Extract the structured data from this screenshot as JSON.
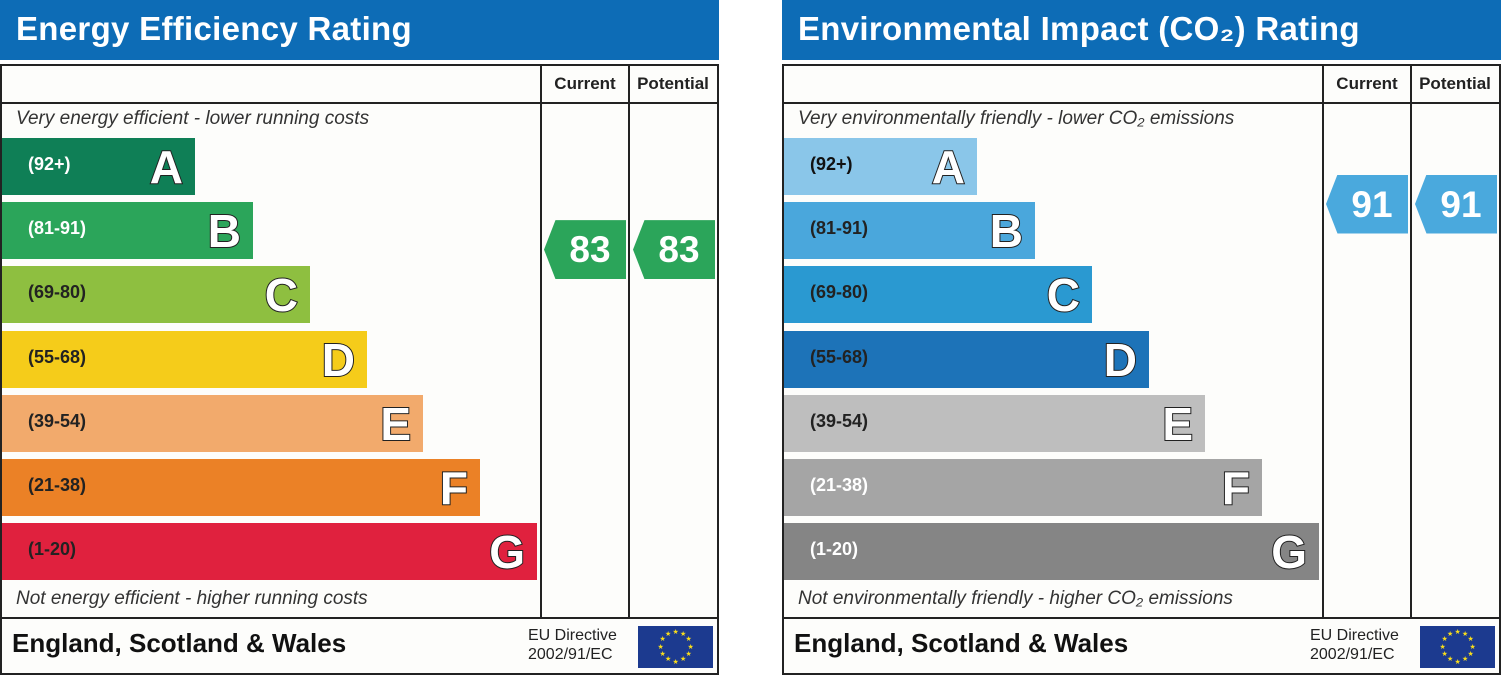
{
  "chart_data": [
    {
      "type": "bar",
      "title": "Energy Efficiency Rating",
      "columns": [
        "Current",
        "Potential"
      ],
      "top_text": "Very energy efficient - lower running costs",
      "bottom_text": "Not energy efficient - higher running costs",
      "bands": [
        {
          "letter": "A",
          "range": "(92+)",
          "min": 92,
          "max": 100,
          "color": "#0f7f56",
          "text_color": "#ffffff"
        },
        {
          "letter": "B",
          "range": "(81-91)",
          "min": 81,
          "max": 91,
          "color": "#2ba55a",
          "text_color": "#ffffff"
        },
        {
          "letter": "C",
          "range": "(69-80)",
          "min": 69,
          "max": 80,
          "color": "#8ebf40",
          "text_color": "#222222"
        },
        {
          "letter": "D",
          "range": "(55-68)",
          "min": 55,
          "max": 68,
          "color": "#f5cc1a",
          "text_color": "#222222"
        },
        {
          "letter": "E",
          "range": "(39-54)",
          "min": 39,
          "max": 54,
          "color": "#f2aa6c",
          "text_color": "#222222"
        },
        {
          "letter": "F",
          "range": "(21-38)",
          "min": 21,
          "max": 38,
          "color": "#eb8126",
          "text_color": "#222222"
        },
        {
          "letter": "G",
          "range": "(1-20)",
          "min": 1,
          "max": 20,
          "color": "#e0213e",
          "text_color": "#222222"
        }
      ],
      "current": 83,
      "potential": 83,
      "arrow_color": "#2ba55a",
      "footer": "England, Scotland & Wales",
      "eu_line1": "EU Directive",
      "eu_line2": "2002/91/EC"
    },
    {
      "type": "bar",
      "title": "Environmental Impact (CO₂) Rating",
      "columns": [
        "Current",
        "Potential"
      ],
      "top_text": "Very environmentally friendly - lower CO₂ emissions",
      "bottom_text": "Not environmentally friendly - higher CO₂ emissions",
      "bands": [
        {
          "letter": "A",
          "range": "(92+)",
          "min": 92,
          "max": 100,
          "color": "#8ac6e9",
          "text_color": "#111111"
        },
        {
          "letter": "B",
          "range": "(81-91)",
          "min": 81,
          "max": 91,
          "color": "#4aa7dc",
          "text_color": "#222222"
        },
        {
          "letter": "C",
          "range": "(69-80)",
          "min": 69,
          "max": 80,
          "color": "#2a99d1",
          "text_color": "#222222"
        },
        {
          "letter": "D",
          "range": "(55-68)",
          "min": 55,
          "max": 68,
          "color": "#1d73b8",
          "text_color": "#222222"
        },
        {
          "letter": "E",
          "range": "(39-54)",
          "min": 39,
          "max": 54,
          "color": "#bebebe",
          "text_color": "#222222"
        },
        {
          "letter": "F",
          "range": "(21-38)",
          "min": 21,
          "max": 38,
          "color": "#a5a5a5",
          "text_color": "#ffffff"
        },
        {
          "letter": "G",
          "range": "(1-20)",
          "min": 1,
          "max": 20,
          "color": "#858585",
          "text_color": "#ffffff"
        }
      ],
      "current": 91,
      "potential": 91,
      "arrow_color": "#4aa9dd",
      "footer": "England, Scotland & Wales",
      "eu_line1": "EU Directive",
      "eu_line2": "2002/91/EC"
    }
  ]
}
